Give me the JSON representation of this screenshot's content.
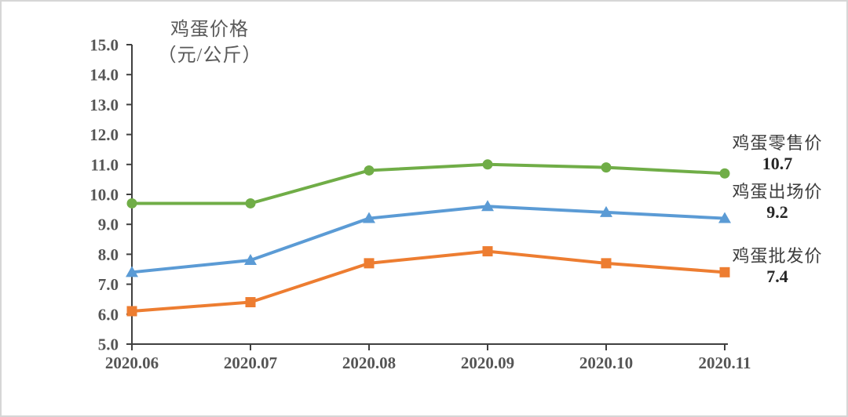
{
  "title": {
    "line1": "鸡蛋价格",
    "line2": "（元/公斤）"
  },
  "annotations": [
    {
      "label": "鸡蛋零售价",
      "value": "10.7"
    },
    {
      "label": "鸡蛋出场价",
      "value": "9.2"
    },
    {
      "label": "鸡蛋批发价",
      "value": "7.4"
    }
  ],
  "chart_data": {
    "type": "line",
    "title": "鸡蛋价格（元/公斤）",
    "xlabel": "",
    "ylabel": "",
    "categories": [
      "2020.06",
      "2020.07",
      "2020.08",
      "2020.09",
      "2020.10",
      "2020.11"
    ],
    "series": [
      {
        "name": "鸡蛋零售价",
        "marker": "circle",
        "color": "#70AD47",
        "values": [
          9.7,
          9.7,
          10.8,
          11.0,
          10.9,
          10.7
        ],
        "end_label": "10.7"
      },
      {
        "name": "鸡蛋出场价",
        "marker": "triangle",
        "color": "#5B9BD5",
        "values": [
          7.4,
          7.8,
          9.2,
          9.6,
          9.4,
          9.2
        ],
        "end_label": "9.2"
      },
      {
        "name": "鸡蛋批发价",
        "marker": "square",
        "color": "#ED7D31",
        "values": [
          6.1,
          6.4,
          7.7,
          8.1,
          7.7,
          7.4
        ],
        "end_label": "7.4"
      }
    ],
    "ylim": [
      5.0,
      15.0
    ],
    "ytick_step": 1.0,
    "ytick_labels": [
      "5.0",
      "6.0",
      "7.0",
      "8.0",
      "9.0",
      "10.0",
      "11.0",
      "12.0",
      "13.0",
      "14.0",
      "15.0"
    ],
    "grid": false,
    "legend_position": "right-of-line-annotations",
    "axis_color": "#404040",
    "tick_text_color": "#555555",
    "title_text_color": "#595959"
  }
}
